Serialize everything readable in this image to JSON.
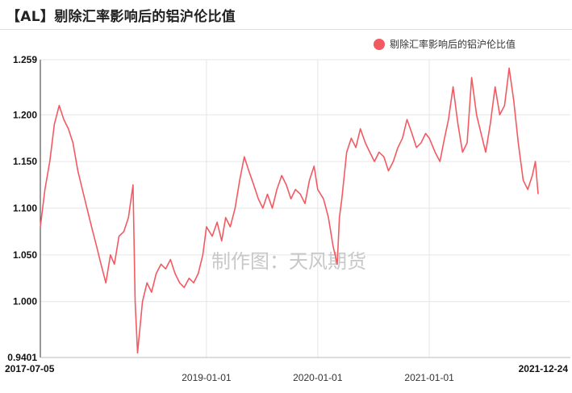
{
  "title": "【AL】剔除汇率影响后的铝沪伦比值",
  "watermark": "制作图：天风期货",
  "colors": {
    "series": "#f25a62",
    "grid": "#e6e6e6",
    "axis": "#333333"
  },
  "chart_data": {
    "type": "line",
    "title": "【AL】剔除汇率影响后的铝沪伦比值",
    "xlabel": "",
    "ylabel": "",
    "legend_position": "top-right",
    "grid": true,
    "ylim": [
      0.9401,
      1.259
    ],
    "xlim": [
      "2017-07-05",
      "2021-12-24"
    ],
    "y_ticks": [
      "0.9401",
      "1.000",
      "1.050",
      "1.100",
      "1.150",
      "1.200",
      "1.259"
    ],
    "x_ticks": [
      "2017-07-05",
      "2019-01-01",
      "2020-01-01",
      "2021-01-01",
      "2021-12-24"
    ],
    "series": [
      {
        "name": "剔除汇率影响后的铝沪伦比值",
        "color": "#f25a62",
        "points": [
          [
            "2017-07-05",
            1.08
          ],
          [
            "2017-07-20",
            1.12
          ],
          [
            "2017-08-05",
            1.15
          ],
          [
            "2017-08-20",
            1.19
          ],
          [
            "2017-09-05",
            1.21
          ],
          [
            "2017-09-20",
            1.195
          ],
          [
            "2017-10-05",
            1.185
          ],
          [
            "2017-10-20",
            1.17
          ],
          [
            "2017-11-05",
            1.14
          ],
          [
            "2017-11-20",
            1.12
          ],
          [
            "2017-12-05",
            1.1
          ],
          [
            "2017-12-20",
            1.08
          ],
          [
            "2018-01-05",
            1.06
          ],
          [
            "2018-01-20",
            1.04
          ],
          [
            "2018-02-05",
            1.02
          ],
          [
            "2018-02-20",
            1.05
          ],
          [
            "2018-03-05",
            1.04
          ],
          [
            "2018-03-20",
            1.07
          ],
          [
            "2018-04-05",
            1.075
          ],
          [
            "2018-04-20",
            1.09
          ],
          [
            "2018-05-05",
            1.125
          ],
          [
            "2018-05-12",
            1.0
          ],
          [
            "2018-05-20",
            0.945
          ],
          [
            "2018-06-05",
            1.0
          ],
          [
            "2018-06-20",
            1.02
          ],
          [
            "2018-07-05",
            1.01
          ],
          [
            "2018-07-20",
            1.03
          ],
          [
            "2018-08-05",
            1.04
          ],
          [
            "2018-08-20",
            1.035
          ],
          [
            "2018-09-05",
            1.045
          ],
          [
            "2018-09-20",
            1.03
          ],
          [
            "2018-10-05",
            1.02
          ],
          [
            "2018-10-20",
            1.015
          ],
          [
            "2018-11-05",
            1.025
          ],
          [
            "2018-11-20",
            1.02
          ],
          [
            "2018-12-05",
            1.03
          ],
          [
            "2018-12-20",
            1.05
          ],
          [
            "2019-01-01",
            1.08
          ],
          [
            "2019-01-20",
            1.07
          ],
          [
            "2019-02-05",
            1.085
          ],
          [
            "2019-02-20",
            1.065
          ],
          [
            "2019-03-05",
            1.09
          ],
          [
            "2019-03-20",
            1.08
          ],
          [
            "2019-04-05",
            1.1
          ],
          [
            "2019-04-20",
            1.13
          ],
          [
            "2019-05-05",
            1.155
          ],
          [
            "2019-05-20",
            1.14
          ],
          [
            "2019-06-05",
            1.125
          ],
          [
            "2019-06-20",
            1.11
          ],
          [
            "2019-07-05",
            1.1
          ],
          [
            "2019-07-20",
            1.115
          ],
          [
            "2019-08-05",
            1.1
          ],
          [
            "2019-08-20",
            1.12
          ],
          [
            "2019-09-05",
            1.135
          ],
          [
            "2019-09-20",
            1.125
          ],
          [
            "2019-10-05",
            1.11
          ],
          [
            "2019-10-20",
            1.12
          ],
          [
            "2019-11-05",
            1.115
          ],
          [
            "2019-11-20",
            1.105
          ],
          [
            "2019-12-05",
            1.13
          ],
          [
            "2019-12-20",
            1.145
          ],
          [
            "2020-01-01",
            1.12
          ],
          [
            "2020-01-20",
            1.11
          ],
          [
            "2020-02-05",
            1.09
          ],
          [
            "2020-02-20",
            1.06
          ],
          [
            "2020-03-05",
            1.04
          ],
          [
            "2020-03-12",
            1.09
          ],
          [
            "2020-03-20",
            1.11
          ],
          [
            "2020-04-05",
            1.16
          ],
          [
            "2020-04-20",
            1.175
          ],
          [
            "2020-05-05",
            1.165
          ],
          [
            "2020-05-20",
            1.185
          ],
          [
            "2020-06-05",
            1.17
          ],
          [
            "2020-06-20",
            1.16
          ],
          [
            "2020-07-05",
            1.15
          ],
          [
            "2020-07-20",
            1.16
          ],
          [
            "2020-08-05",
            1.155
          ],
          [
            "2020-08-20",
            1.14
          ],
          [
            "2020-09-05",
            1.15
          ],
          [
            "2020-09-20",
            1.165
          ],
          [
            "2020-10-05",
            1.175
          ],
          [
            "2020-10-20",
            1.195
          ],
          [
            "2020-11-05",
            1.18
          ],
          [
            "2020-11-20",
            1.165
          ],
          [
            "2020-12-05",
            1.17
          ],
          [
            "2020-12-20",
            1.18
          ],
          [
            "2021-01-01",
            1.175
          ],
          [
            "2021-01-20",
            1.16
          ],
          [
            "2021-02-05",
            1.15
          ],
          [
            "2021-02-20",
            1.175
          ],
          [
            "2021-03-05",
            1.195
          ],
          [
            "2021-03-20",
            1.23
          ],
          [
            "2021-04-05",
            1.19
          ],
          [
            "2021-04-20",
            1.16
          ],
          [
            "2021-05-05",
            1.17
          ],
          [
            "2021-05-20",
            1.24
          ],
          [
            "2021-06-05",
            1.2
          ],
          [
            "2021-06-20",
            1.18
          ],
          [
            "2021-07-05",
            1.16
          ],
          [
            "2021-07-20",
            1.19
          ],
          [
            "2021-08-05",
            1.23
          ],
          [
            "2021-08-20",
            1.2
          ],
          [
            "2021-09-05",
            1.21
          ],
          [
            "2021-09-20",
            1.25
          ],
          [
            "2021-10-05",
            1.215
          ],
          [
            "2021-10-20",
            1.17
          ],
          [
            "2021-11-05",
            1.13
          ],
          [
            "2021-11-20",
            1.12
          ],
          [
            "2021-12-05",
            1.135
          ],
          [
            "2021-12-15",
            1.15
          ],
          [
            "2021-12-24",
            1.115
          ]
        ]
      }
    ]
  }
}
